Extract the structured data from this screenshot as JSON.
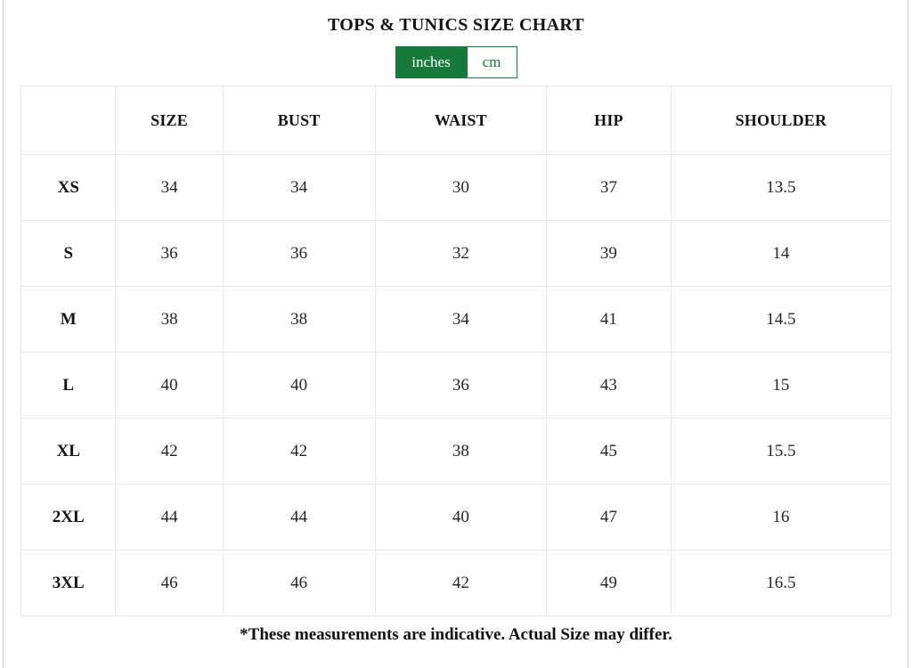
{
  "title": "TOPS & TUNICS SIZE CHART",
  "toggle": {
    "inches_label": "inches",
    "cm_label": "cm",
    "selected": "inches"
  },
  "colors": {
    "accent_green": "#177a3c",
    "table_border": "#e9e9e9",
    "edge_line": "#c9c9c9"
  },
  "table": {
    "columns": [
      "",
      "SIZE",
      "BUST",
      "WAIST",
      "HIP",
      "SHOULDER"
    ],
    "rows": [
      {
        "label": "XS",
        "values": [
          "34",
          "34",
          "30",
          "37",
          "13.5"
        ]
      },
      {
        "label": "S",
        "values": [
          "36",
          "36",
          "32",
          "39",
          "14"
        ]
      },
      {
        "label": "M",
        "values": [
          "38",
          "38",
          "34",
          "41",
          "14.5"
        ]
      },
      {
        "label": "L",
        "values": [
          "40",
          "40",
          "36",
          "43",
          "15"
        ]
      },
      {
        "label": "XL",
        "values": [
          "42",
          "42",
          "38",
          "45",
          "15.5"
        ]
      },
      {
        "label": "2XL",
        "values": [
          "44",
          "44",
          "40",
          "47",
          "16"
        ]
      },
      {
        "label": "3XL",
        "values": [
          "46",
          "46",
          "42",
          "49",
          "16.5"
        ]
      }
    ]
  },
  "footnote": "*These measurements are indicative. Actual Size may differ."
}
